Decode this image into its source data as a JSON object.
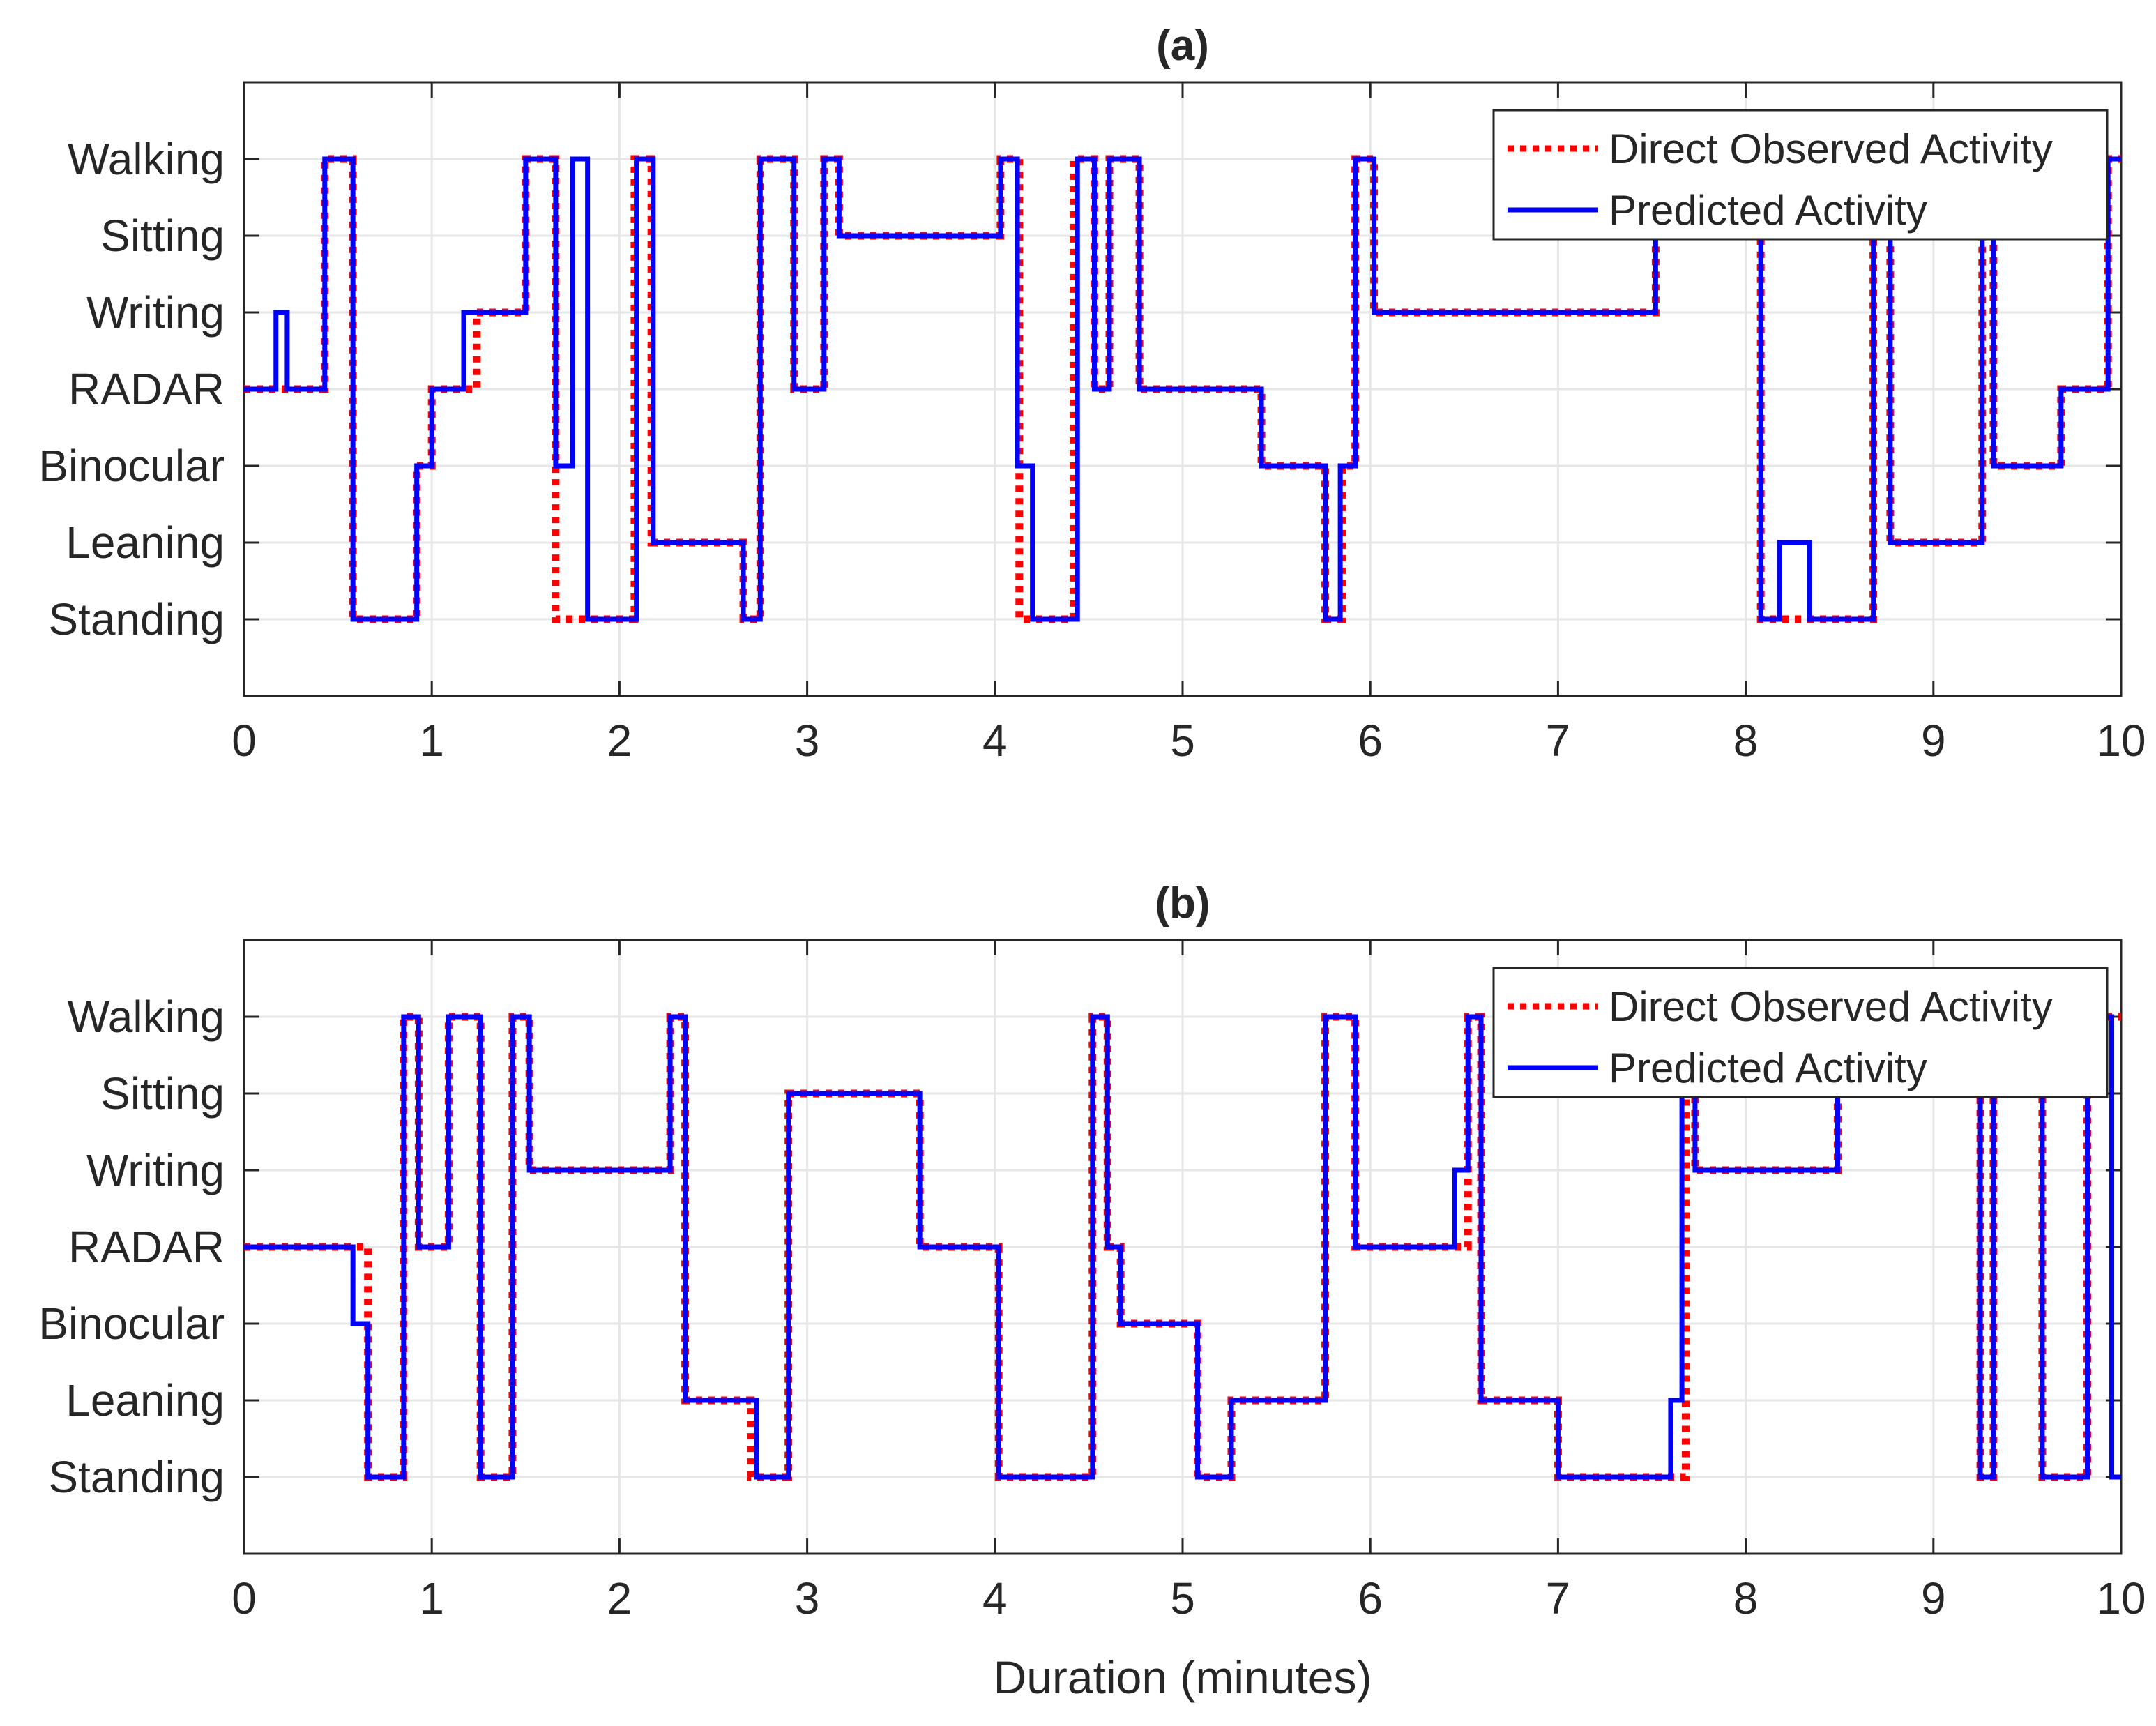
{
  "figure": {
    "xlabel": "Duration (minutes)",
    "legend": {
      "observed_label": "Direct Observed Activity",
      "predicted_label": "Predicted Activity"
    },
    "colors": {
      "observed": "#ff0000",
      "predicted": "#0000ff",
      "grid": "#e6e6e6",
      "axis": "#262626"
    }
  },
  "chart_data": [
    {
      "type": "line",
      "title": "(a)",
      "xlabel": "",
      "ylabel": "",
      "xlim": [
        0,
        10
      ],
      "ylim": [
        0,
        8
      ],
      "xticks": [
        0,
        1,
        2,
        3,
        4,
        5,
        6,
        7,
        8,
        9,
        10
      ],
      "ytick_values": [
        1,
        2,
        3,
        4,
        5,
        6,
        7
      ],
      "ytick_labels": [
        "Standing",
        "Leaning",
        "Binocular",
        "RADAR",
        "Writing",
        "Sitting",
        "Walking"
      ],
      "grid": true,
      "legend_position": "top-right",
      "series": [
        {
          "name": "Direct Observed Activity",
          "style": "dotted-red",
          "steps": [
            [
              0,
              4
            ],
            [
              0.22,
              4
            ],
            [
              0.43,
              7
            ],
            [
              0.58,
              1
            ],
            [
              0.92,
              3
            ],
            [
              1.0,
              4
            ],
            [
              1.24,
              5
            ],
            [
              1.5,
              7
            ],
            [
              1.66,
              1
            ],
            [
              1.71,
              1
            ],
            [
              1.77,
              1
            ],
            [
              1.81,
              1
            ],
            [
              2.08,
              7
            ],
            [
              2.17,
              2
            ],
            [
              2.66,
              1
            ],
            [
              2.75,
              7
            ],
            [
              2.93,
              4
            ],
            [
              3.09,
              7
            ],
            [
              3.17,
              6
            ],
            [
              4.03,
              7
            ],
            [
              4.13,
              1
            ],
            [
              4.42,
              7
            ],
            [
              4.53,
              4
            ],
            [
              4.61,
              7
            ],
            [
              4.77,
              4
            ],
            [
              5.42,
              3
            ],
            [
              5.76,
              1
            ],
            [
              5.85,
              3
            ],
            [
              5.92,
              7
            ],
            [
              6.02,
              5
            ],
            [
              7.52,
              6
            ],
            [
              8.08,
              1
            ],
            [
              8.32,
              1
            ],
            [
              8.68,
              6
            ],
            [
              8.77,
              2
            ],
            [
              9.26,
              6
            ],
            [
              9.32,
              3
            ],
            [
              9.68,
              4
            ],
            [
              9.93,
              7
            ],
            [
              10,
              7
            ]
          ]
        },
        {
          "name": "Predicted Activity",
          "style": "solid-blue",
          "steps": [
            [
              0,
              4
            ],
            [
              0.17,
              5
            ],
            [
              0.23,
              4
            ],
            [
              0.43,
              7
            ],
            [
              0.58,
              1
            ],
            [
              0.92,
              3
            ],
            [
              1.0,
              4
            ],
            [
              1.17,
              5
            ],
            [
              1.5,
              7
            ],
            [
              1.66,
              3
            ],
            [
              1.75,
              7
            ],
            [
              1.83,
              1
            ],
            [
              2.09,
              7
            ],
            [
              2.18,
              2
            ],
            [
              2.66,
              1
            ],
            [
              2.75,
              7
            ],
            [
              2.93,
              4
            ],
            [
              3.09,
              7
            ],
            [
              3.17,
              6
            ],
            [
              4.03,
              7
            ],
            [
              4.12,
              3
            ],
            [
              4.2,
              1
            ],
            [
              4.44,
              7
            ],
            [
              4.53,
              4
            ],
            [
              4.61,
              7
            ],
            [
              4.77,
              4
            ],
            [
              5.42,
              3
            ],
            [
              5.76,
              1
            ],
            [
              5.84,
              3
            ],
            [
              5.92,
              7
            ],
            [
              6.02,
              5
            ],
            [
              7.52,
              6
            ],
            [
              8.08,
              1
            ],
            [
              8.18,
              2
            ],
            [
              8.34,
              1
            ],
            [
              8.68,
              6
            ],
            [
              8.77,
              2
            ],
            [
              9.26,
              6
            ],
            [
              9.32,
              3
            ],
            [
              9.68,
              4
            ],
            [
              9.93,
              7
            ],
            [
              10,
              7
            ]
          ]
        }
      ]
    },
    {
      "type": "line",
      "title": "(b)",
      "xlabel": "Duration (minutes)",
      "ylabel": "",
      "xlim": [
        0,
        10
      ],
      "ylim": [
        0,
        8
      ],
      "xticks": [
        0,
        1,
        2,
        3,
        4,
        5,
        6,
        7,
        8,
        9,
        10
      ],
      "ytick_values": [
        1,
        2,
        3,
        4,
        5,
        6,
        7
      ],
      "ytick_labels": [
        "Standing",
        "Leaning",
        "Binocular",
        "RADAR",
        "Writing",
        "Sitting",
        "Walking"
      ],
      "grid": true,
      "legend_position": "top-right",
      "series": [
        {
          "name": "Direct Observed Activity",
          "style": "dotted-red",
          "steps": [
            [
              0,
              4
            ],
            [
              0.66,
              1
            ],
            [
              0.85,
              7
            ],
            [
              0.93,
              4
            ],
            [
              1.09,
              7
            ],
            [
              1.26,
              1
            ],
            [
              1.43,
              7
            ],
            [
              1.52,
              5
            ],
            [
              2.27,
              7
            ],
            [
              2.35,
              2
            ],
            [
              2.7,
              1
            ],
            [
              2.9,
              6
            ],
            [
              3.6,
              4
            ],
            [
              4.02,
              1
            ],
            [
              4.52,
              7
            ],
            [
              4.6,
              4
            ],
            [
              4.67,
              3
            ],
            [
              5.08,
              1
            ],
            [
              5.26,
              2
            ],
            [
              5.76,
              7
            ],
            [
              5.92,
              4
            ],
            [
              6.52,
              7
            ],
            [
              6.59,
              2
            ],
            [
              7.0,
              1
            ],
            [
              7.68,
              6
            ],
            [
              7.73,
              5
            ],
            [
              8.49,
              6
            ],
            [
              9.25,
              1
            ],
            [
              9.32,
              6
            ],
            [
              9.58,
              1
            ],
            [
              9.82,
              6
            ],
            [
              9.9,
              7
            ],
            [
              10,
              7
            ]
          ]
        },
        {
          "name": "Predicted Activity",
          "style": "solid-blue",
          "steps": [
            [
              0,
              4
            ],
            [
              0.58,
              3
            ],
            [
              0.66,
              1
            ],
            [
              0.85,
              7
            ],
            [
              0.93,
              4
            ],
            [
              1.09,
              7
            ],
            [
              1.26,
              1
            ],
            [
              1.43,
              7
            ],
            [
              1.52,
              5
            ],
            [
              2.27,
              7
            ],
            [
              2.35,
              2
            ],
            [
              2.73,
              1
            ],
            [
              2.9,
              6
            ],
            [
              3.6,
              4
            ],
            [
              4.02,
              1
            ],
            [
              4.52,
              7
            ],
            [
              4.6,
              4
            ],
            [
              4.67,
              3
            ],
            [
              5.08,
              1
            ],
            [
              5.26,
              2
            ],
            [
              5.76,
              7
            ],
            [
              5.92,
              4
            ],
            [
              6.45,
              5
            ],
            [
              6.52,
              7
            ],
            [
              6.59,
              2
            ],
            [
              7.0,
              1
            ],
            [
              7.6,
              2
            ],
            [
              7.66,
              6
            ],
            [
              7.73,
              5
            ],
            [
              8.49,
              6
            ],
            [
              9.25,
              1
            ],
            [
              9.32,
              6
            ],
            [
              9.58,
              1
            ],
            [
              9.82,
              6
            ],
            [
              9.9,
              7
            ],
            [
              9.95,
              1
            ],
            [
              10,
              1
            ]
          ]
        }
      ]
    }
  ]
}
